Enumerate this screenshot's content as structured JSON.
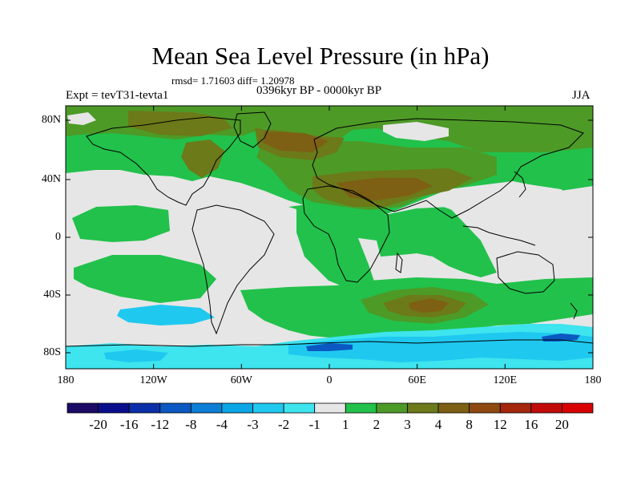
{
  "title": "Mean Sea Level Pressure (in hPa)",
  "stats": "rmsd= 1.71603  diff= 1.20978",
  "period": "0396kyr BP - 0000kyr BP",
  "experiment": "Expt = tevT31-tevta1",
  "season": "JJA",
  "axes": {
    "x_ticks": [
      "180",
      "120W",
      "60W",
      "0",
      "60E",
      "120E",
      "180"
    ],
    "y_ticks": [
      "80N",
      "40N",
      "0",
      "40S",
      "80S"
    ]
  },
  "colorbar": {
    "labels": [
      "-20",
      "-16",
      "-12",
      "-8",
      "-4",
      "-3",
      "-2",
      "-1",
      "1",
      "2",
      "3",
      "4",
      "8",
      "12",
      "16",
      "20"
    ],
    "colors": [
      "#1b0a66",
      "#0b0e8c",
      "#0a2fa8",
      "#0b58c2",
      "#0c7ed6",
      "#0aa6e6",
      "#1fc8ef",
      "#3ee4ee",
      "#e6e6e6",
      "#22c14b",
      "#4d9a27",
      "#6c7a19",
      "#7d6014",
      "#8e4910",
      "#a4260d",
      "#c10a0a",
      "#d80000"
    ]
  },
  "colors": {
    "neutral": "#e6e6e6",
    "green": "#22c14b",
    "olive": "#4d9a27",
    "dark_olive": "#6c7a19",
    "brown": "#7d6014",
    "light_cyan": "#3ee4ee",
    "cyan": "#1fc8ef",
    "blue": "#0b58c2",
    "coast": "#000000"
  }
}
